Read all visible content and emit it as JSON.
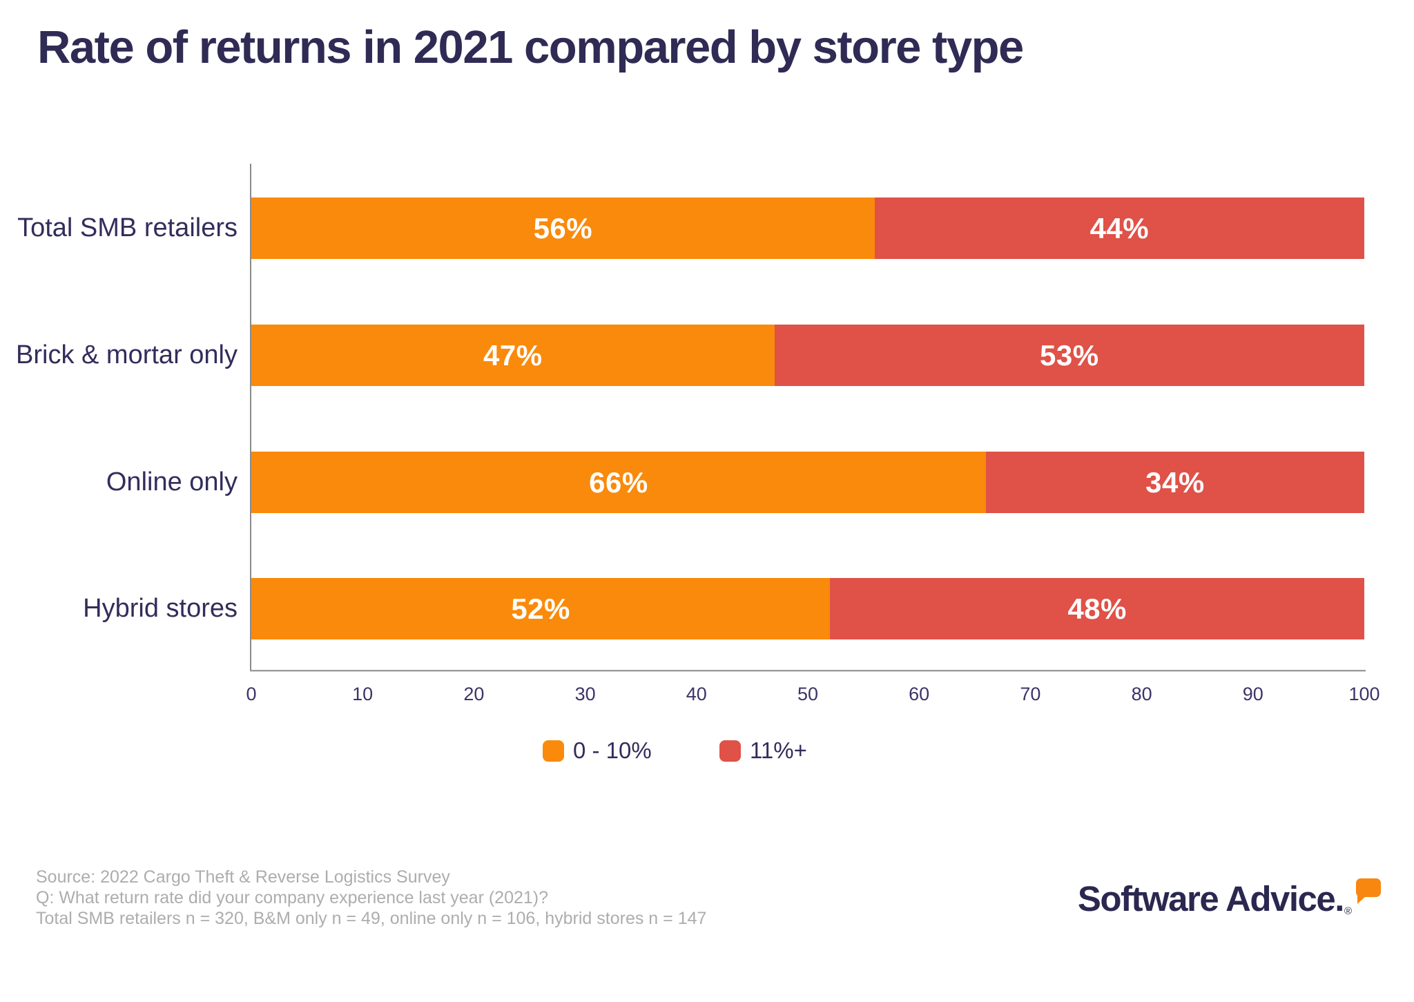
{
  "title": "Rate of returns in 2021 compared by store type",
  "chart_data": {
    "type": "bar",
    "orientation": "horizontal",
    "stacked": true,
    "title": "Rate of returns in 2021 compared by store type",
    "categories": [
      "Total SMB retailers",
      "Brick & mortar only",
      "Online only",
      "Hybrid stores"
    ],
    "series": [
      {
        "name": "0 - 10%",
        "color": "#FA8A0B",
        "values": [
          56,
          47,
          66,
          52
        ]
      },
      {
        "name": "11%+",
        "color": "#E05147",
        "values": [
          44,
          53,
          34,
          48
        ]
      }
    ],
    "value_suffix": "%",
    "xlim": [
      0,
      100
    ],
    "x_ticks": [
      0,
      10,
      20,
      30,
      40,
      50,
      60,
      70,
      80,
      90,
      100
    ],
    "grid": false,
    "legend_position": "bottom",
    "bar_label_color": "#FFFFFF"
  },
  "legend": {
    "items": [
      {
        "label": "0 - 10%",
        "color": "#FA8A0B"
      },
      {
        "label": "11%+",
        "color": "#E05147"
      }
    ]
  },
  "footer": {
    "lines": [
      "Source: 2022 Cargo Theft & Reverse Logistics Survey",
      "Q: What return rate did your company experience last year (2021)?",
      "Total SMB retailers n = 320, B&M only n = 49, online only n = 106, hybrid stores n = 147"
    ]
  },
  "logo": {
    "text": "Software Advice.",
    "registered": "®"
  },
  "colors": {
    "title": "#2F2B54",
    "category_text": "#322D5B",
    "axis_tick_text": "#3B3467",
    "axis_line": "#8E8E8E",
    "footer_text": "#ADADAD",
    "background": "#FFFFFF",
    "logo_navy": "#2A2850",
    "logo_orange": "#F8870F"
  }
}
